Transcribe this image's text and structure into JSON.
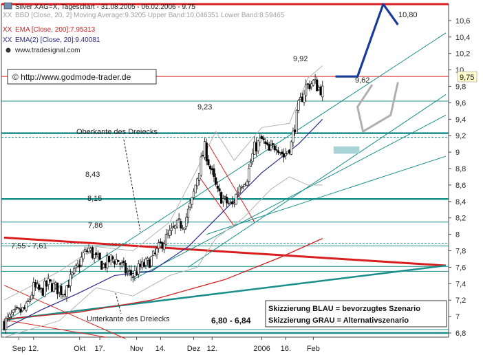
{
  "header": {
    "line1": "Silver XAG=X, Tageschart - 31.08.2005 - 06.02.2006 - 9.75",
    "line2": "BBD [Close, 20, 2] Moving Average:9.3205 Upper Band:10.046351 Lower Band:8.59465",
    "line3": "EMA [Close, 200]:7.95313",
    "line4": "EMA(2) [Close, 20]:9.40081",
    "line5": "www.tradesignal.com",
    "legend_marker": "XX"
  },
  "copyright": "© http://www.godmode-trader.de",
  "annotations": {
    "level_1080": "10,80",
    "level_992": "9,92",
    "level_962": "9,62",
    "level_923": "9,23",
    "level_843": "8,43",
    "level_815": "8,15",
    "level_786": "7,86",
    "range_755_761": "7,55 - 7,61",
    "range_680_684": "6,80 - 6,84",
    "triangle_top": "Oberkante des Dreiecks",
    "triangle_bottom": "Unterkante des Dreiecks",
    "current_price": "9,75"
  },
  "scenario_box": {
    "line1": "Skizzierung BLAU = bevorzugtes Szenario",
    "line2": "Skizzierung GRAU = Alternativszenario"
  },
  "colors": {
    "up_candle": "#ffffff",
    "down_candle": "#000000",
    "resistance_red": "#d81e1e",
    "support_teal": "#1a8f8a",
    "ema20": "#2a2a8c",
    "ema200": "#cc2222",
    "scenario_blue": "#1a3a9a",
    "scenario_grey": "#b0b0b0",
    "price_tag_bg": "#ffffcc"
  },
  "chart_data": {
    "type": "candlestick",
    "title": "Silver XAG=X, Tageschart - 31.08.2005 - 06.02.2006 - 9.75",
    "ylim": [
      6.75,
      10.8
    ],
    "y_ticks": [
      6.8,
      7.0,
      7.2,
      7.4,
      7.6,
      7.8,
      8.0,
      8.2,
      8.4,
      8.6,
      8.8,
      9.0,
      9.2,
      9.4,
      9.6,
      9.8,
      10.0,
      10.2,
      10.4,
      10.6
    ],
    "y_tick_labels": [
      "6,8",
      "7",
      "7,2",
      "7,4",
      "7,6",
      "7,8",
      "8",
      "8,2",
      "8,4",
      "8,6",
      "8,8",
      "9",
      "9,2",
      "9,4",
      "9,6",
      "9,8",
      "10",
      "10,2",
      "10,4",
      "10,6"
    ],
    "x_ticks": [
      {
        "index": 8,
        "label": "Sep"
      },
      {
        "index": 16,
        "label": "12."
      },
      {
        "index": 41,
        "label": "Okt"
      },
      {
        "index": 52,
        "label": "17."
      },
      {
        "index": 72,
        "label": "Nov"
      },
      {
        "index": 85,
        "label": "14."
      },
      {
        "index": 103,
        "label": "Dez"
      },
      {
        "index": 113,
        "label": "12."
      },
      {
        "index": 140,
        "label": "2006"
      },
      {
        "index": 153,
        "label": "16."
      },
      {
        "index": 168,
        "label": "Feb"
      }
    ],
    "horizontal_levels": [
      {
        "value": 10.8,
        "style": "red-thick"
      },
      {
        "value": 9.92,
        "style": "red-thin"
      },
      {
        "value": 9.62,
        "style": "teal-thin"
      },
      {
        "value": 9.23,
        "style": "teal-thick"
      },
      {
        "value": 9.18,
        "style": "teal-dashed"
      },
      {
        "value": 8.43,
        "style": "teal-thick"
      },
      {
        "value": 8.15,
        "style": "teal-thin"
      },
      {
        "value": 7.89,
        "style": "teal-dashed"
      },
      {
        "value": 7.86,
        "style": "teal-thin"
      },
      {
        "value": 7.61,
        "style": "teal-thin"
      },
      {
        "value": 7.55,
        "style": "teal-thin"
      },
      {
        "value": 6.84,
        "style": "teal-thin"
      },
      {
        "value": 6.8,
        "style": "teal-thick"
      }
    ],
    "trendlines": [
      {
        "from": [
          0,
          7.96
        ],
        "to": [
          240,
          7.62
        ],
        "style": "red-thick"
      },
      {
        "from": [
          0,
          6.96
        ],
        "to": [
          240,
          7.62
        ],
        "style": "teal-thick"
      },
      {
        "from": [
          0,
          7.38
        ],
        "to": [
          66,
          6.73
        ],
        "style": "red-thin"
      },
      {
        "from": [
          0,
          6.96
        ],
        "to": [
          55,
          6.75
        ],
        "style": "red-thin"
      },
      {
        "from": [
          0,
          6.93
        ],
        "to": [
          240,
          10.45
        ],
        "style": "teal-thin"
      },
      {
        "from": [
          70,
          7.45
        ],
        "to": [
          240,
          9.45
        ],
        "style": "teal-thin"
      },
      {
        "from": [
          100,
          7.6
        ],
        "to": [
          240,
          9.7
        ],
        "style": "teal-thin"
      },
      {
        "from": [
          110,
          8.0
        ],
        "to": [
          240,
          8.95
        ],
        "style": "teal-thin"
      },
      {
        "from": [
          111,
          9.1
        ],
        "to": [
          136,
          8.15
        ],
        "style": "red-thin"
      },
      {
        "from": [
          106,
          8.7
        ],
        "to": [
          125,
          8.1
        ],
        "style": "red-thin"
      }
    ],
    "price_path": [
      [
        0,
        6.92
      ],
      [
        4,
        7.0
      ],
      [
        8,
        7.05
      ],
      [
        12,
        7.1
      ],
      [
        16,
        7.35
      ],
      [
        20,
        7.3
      ],
      [
        24,
        7.4
      ],
      [
        28,
        7.35
      ],
      [
        32,
        7.3
      ],
      [
        36,
        7.45
      ],
      [
        40,
        7.6
      ],
      [
        43,
        7.75
      ],
      [
        46,
        7.82
      ],
      [
        50,
        7.7
      ],
      [
        54,
        7.62
      ],
      [
        58,
        7.7
      ],
      [
        62,
        7.68
      ],
      [
        66,
        7.55
      ],
      [
        70,
        7.5
      ],
      [
        74,
        7.6
      ],
      [
        78,
        7.65
      ],
      [
        82,
        7.75
      ],
      [
        86,
        7.9
      ],
      [
        90,
        8.0
      ],
      [
        94,
        8.1
      ],
      [
        98,
        8.15
      ],
      [
        102,
        8.4
      ],
      [
        106,
        8.8
      ],
      [
        109,
        9.05
      ],
      [
        112,
        8.8
      ],
      [
        116,
        8.5
      ],
      [
        120,
        8.4
      ],
      [
        124,
        8.35
      ],
      [
        128,
        8.6
      ],
      [
        132,
        8.7
      ],
      [
        136,
        9.05
      ],
      [
        140,
        9.15
      ],
      [
        144,
        9.0
      ],
      [
        148,
        9.1
      ],
      [
        152,
        8.95
      ],
      [
        156,
        9.1
      ],
      [
        160,
        9.55
      ],
      [
        164,
        9.8
      ],
      [
        168,
        9.85
      ],
      [
        171,
        9.78
      ],
      [
        173,
        9.75
      ]
    ],
    "ema200": [
      [
        0,
        6.97
      ],
      [
        40,
        7.05
      ],
      [
        80,
        7.2
      ],
      [
        120,
        7.45
      ],
      [
        150,
        7.72
      ],
      [
        173,
        7.95
      ]
    ],
    "ema20": [
      [
        0,
        6.85
      ],
      [
        20,
        7.08
      ],
      [
        40,
        7.28
      ],
      [
        60,
        7.5
      ],
      [
        80,
        7.55
      ],
      [
        100,
        7.85
      ],
      [
        120,
        8.3
      ],
      [
        140,
        8.75
      ],
      [
        160,
        9.1
      ],
      [
        173,
        9.4
      ]
    ],
    "bollinger_upper": [
      [
        0,
        7.2
      ],
      [
        30,
        7.55
      ],
      [
        50,
        7.85
      ],
      [
        70,
        7.8
      ],
      [
        90,
        8.15
      ],
      [
        105,
        8.8
      ],
      [
        115,
        9.25
      ],
      [
        125,
        8.9
      ],
      [
        140,
        9.3
      ],
      [
        155,
        9.35
      ],
      [
        165,
        9.9
      ],
      [
        173,
        10.05
      ]
    ],
    "bollinger_lower": [
      [
        0,
        6.75
      ],
      [
        30,
        6.95
      ],
      [
        50,
        7.35
      ],
      [
        70,
        7.25
      ],
      [
        90,
        7.5
      ],
      [
        105,
        7.6
      ],
      [
        115,
        7.95
      ],
      [
        130,
        8.2
      ],
      [
        145,
        8.55
      ],
      [
        155,
        8.7
      ],
      [
        165,
        8.6
      ],
      [
        173,
        8.6
      ]
    ],
    "scenario_blue": [
      [
        180,
        9.92
      ],
      [
        192,
        9.92
      ],
      [
        206,
        10.8
      ],
      [
        214,
        10.55
      ]
    ],
    "scenario_grey": [
      [
        200,
        9.82
      ],
      [
        192,
        9.55
      ],
      [
        195,
        9.25
      ],
      [
        210,
        9.45
      ],
      [
        214,
        9.85
      ]
    ],
    "target_box": {
      "x0": 179,
      "x1": 193,
      "y0": 8.98,
      "y1": 9.07
    }
  }
}
